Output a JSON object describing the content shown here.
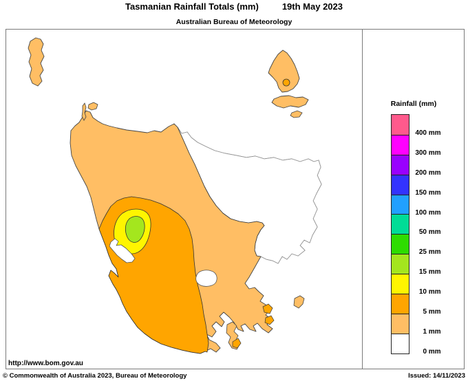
{
  "header": {
    "title": "Tasmanian Rainfall Totals (mm)",
    "date": "19th May 2023",
    "subtitle": "Australian Bureau of Meteorology"
  },
  "legend": {
    "title": "Rainfall (mm)",
    "entries": [
      {
        "value": "400",
        "unit": "mm",
        "color": "#FF5A8C"
      },
      {
        "value": "300",
        "unit": "mm",
        "color": "#FF00FF"
      },
      {
        "value": "200",
        "unit": "mm",
        "color": "#9900FF"
      },
      {
        "value": "150",
        "unit": "mm",
        "color": "#3333FF"
      },
      {
        "value": "100",
        "unit": "mm",
        "color": "#21A0FF"
      },
      {
        "value": "50",
        "unit": "mm",
        "color": "#00DC96"
      },
      {
        "value": "25",
        "unit": "mm",
        "color": "#2EDC00"
      },
      {
        "value": "15",
        "unit": "mm",
        "color": "#A4E61E"
      },
      {
        "value": "10",
        "unit": "mm",
        "color": "#FFF500"
      },
      {
        "value": "5",
        "unit": "mm",
        "color": "#FFA500"
      },
      {
        "value": "1",
        "unit": "mm",
        "color": "#FFBE64"
      },
      {
        "value": "0",
        "unit": "mm",
        "color": "#FFFFFF"
      }
    ]
  },
  "map": {
    "region_fills": {
      "rain_0": "#FFFFFF",
      "rain_1": "#FFBE64",
      "rain_5": "#FFA500",
      "rain_10": "#FFF500",
      "rain_15": "#A4E61E"
    }
  },
  "footer": {
    "url": "http://www.bom.gov.au",
    "copyright": "© Commonwealth of Australia 2023, Bureau of Meteorology",
    "issued": "Issued: 14/11/2023"
  }
}
